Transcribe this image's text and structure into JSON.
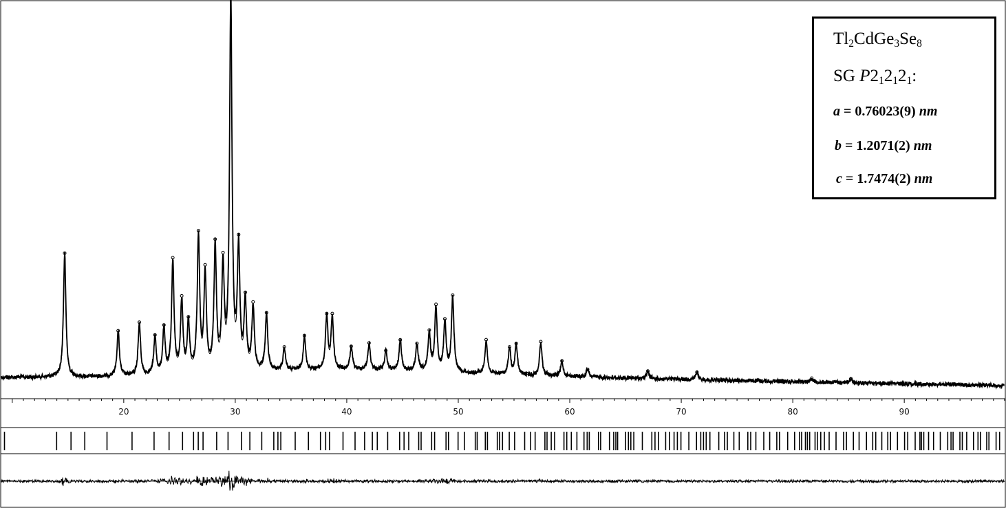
{
  "chart_data": {
    "type": "line",
    "title": "",
    "xlabel": "",
    "ylabel": "",
    "xlim": [
      9,
      99
    ],
    "x_ticks": [
      "20",
      "30",
      "40",
      "50",
      "60",
      "70",
      "80",
      "90"
    ],
    "series": [
      {
        "role": "observed",
        "style": "markers",
        "peaks": [
          {
            "x": 14.7,
            "y": 0.33
          },
          {
            "x": 19.5,
            "y": 0.12
          },
          {
            "x": 21.4,
            "y": 0.14
          },
          {
            "x": 22.8,
            "y": 0.1
          },
          {
            "x": 23.6,
            "y": 0.12
          },
          {
            "x": 24.4,
            "y": 0.3
          },
          {
            "x": 25.2,
            "y": 0.19
          },
          {
            "x": 25.8,
            "y": 0.13
          },
          {
            "x": 26.7,
            "y": 0.36
          },
          {
            "x": 27.3,
            "y": 0.26
          },
          {
            "x": 28.2,
            "y": 0.33
          },
          {
            "x": 28.9,
            "y": 0.27
          },
          {
            "x": 29.6,
            "y": 1.0
          },
          {
            "x": 30.3,
            "y": 0.32
          },
          {
            "x": 30.9,
            "y": 0.18
          },
          {
            "x": 31.6,
            "y": 0.17
          },
          {
            "x": 32.8,
            "y": 0.15
          },
          {
            "x": 34.4,
            "y": 0.06
          },
          {
            "x": 36.2,
            "y": 0.09
          },
          {
            "x": 38.2,
            "y": 0.14
          },
          {
            "x": 38.7,
            "y": 0.14
          },
          {
            "x": 40.4,
            "y": 0.06
          },
          {
            "x": 42.0,
            "y": 0.07
          },
          {
            "x": 43.5,
            "y": 0.05
          },
          {
            "x": 44.8,
            "y": 0.08
          },
          {
            "x": 46.3,
            "y": 0.07
          },
          {
            "x": 47.4,
            "y": 0.1
          },
          {
            "x": 48.0,
            "y": 0.17
          },
          {
            "x": 48.8,
            "y": 0.13
          },
          {
            "x": 49.5,
            "y": 0.2
          },
          {
            "x": 52.5,
            "y": 0.09
          },
          {
            "x": 54.6,
            "y": 0.07
          },
          {
            "x": 55.2,
            "y": 0.08
          },
          {
            "x": 57.4,
            "y": 0.09
          },
          {
            "x": 59.3,
            "y": 0.04
          },
          {
            "x": 61.6,
            "y": 0.02
          },
          {
            "x": 67.0,
            "y": 0.02
          },
          {
            "x": 71.4,
            "y": 0.02
          },
          {
            "x": 81.7,
            "y": 0.01
          },
          {
            "x": 85.2,
            "y": 0.01
          }
        ]
      },
      {
        "role": "calculated",
        "style": "line"
      },
      {
        "role": "difference",
        "style": "line"
      }
    ],
    "reflection_markers": "dense vertical ticks spanning 2θ ≈ 9–99, increasing density at higher angles",
    "grid": false,
    "legend_placement": "top-right"
  },
  "legend": {
    "formula": {
      "tl": "Tl",
      "tl_sub": "2",
      "cd": "Cd",
      "ge": "Ge",
      "ge_sub": "3",
      "se": "Se",
      "se_sub": "8"
    },
    "space_group": {
      "prefix": "SG ",
      "p": "P",
      "two": "2",
      "sub1": "1",
      "colon": ":"
    },
    "a": {
      "symbol": "a",
      "value": " = 0.76023(9) ",
      "unit": "nm"
    },
    "b": {
      "symbol": "b",
      "value": " = 1.2071(2) ",
      "unit": "nm"
    },
    "c": {
      "symbol": "c",
      "value": " = 1.7474(2) ",
      "unit": "nm"
    }
  },
  "colors": {
    "ink": "#000000",
    "background": "#ffffff"
  }
}
